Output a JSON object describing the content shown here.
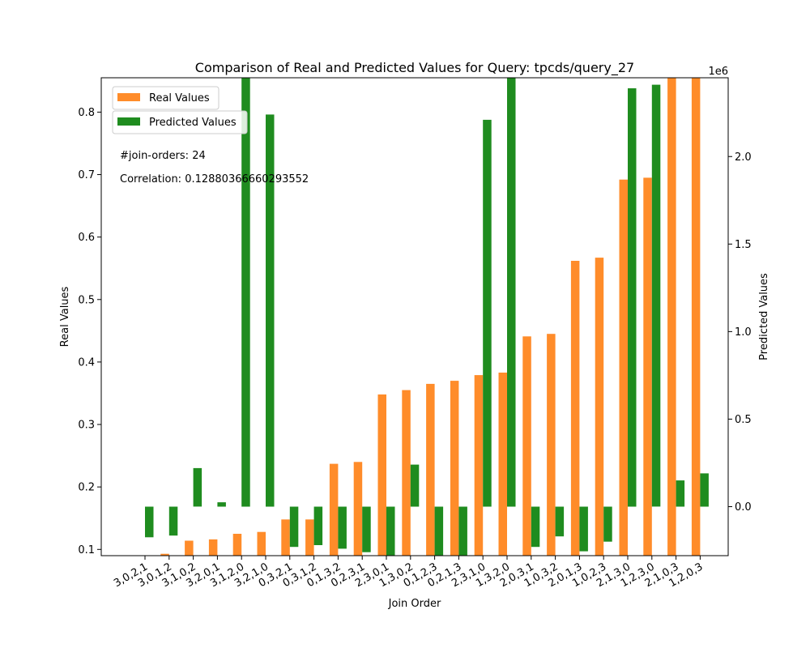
{
  "chart_data": {
    "type": "bar",
    "title": "Comparison of Real and Predicted Values for Query: tpcds/query_27",
    "xlabel": "Join Order",
    "ylabel_left": "Real Values",
    "ylabel_right": "Predicted Values",
    "right_axis_multiplier": "1e6",
    "categories": [
      "3,0,2,1",
      "3,0,1,2",
      "3,1,0,2",
      "3,2,0,1",
      "3,1,2,0",
      "3,2,1,0",
      "0,3,2,1",
      "0,3,1,2",
      "0,1,3,2",
      "0,2,3,1",
      "2,3,0,1",
      "1,3,0,2",
      "0,1,2,3",
      "0,2,1,3",
      "2,3,1,0",
      "1,3,2,0",
      "2,0,3,1",
      "1,0,3,2",
      "2,0,1,3",
      "1,0,2,3",
      "2,1,3,0",
      "1,2,3,0",
      "2,1,0,3",
      "1,2,0,3"
    ],
    "left_ylim": [
      0.09,
      0.855
    ],
    "left_yticks": [
      0.1,
      0.2,
      0.3,
      0.4,
      0.5,
      0.6,
      0.7,
      0.8
    ],
    "left_ytick_labels": [
      "0.1",
      "0.2",
      "0.3",
      "0.4",
      "0.5",
      "0.6",
      "0.7",
      "0.8"
    ],
    "right_ylim": [
      -280000,
      2450000
    ],
    "right_yticks": [
      0,
      500000,
      1000000,
      1500000,
      2000000
    ],
    "right_ytick_labels": [
      "0.0",
      "0.5",
      "1.0",
      "1.5",
      "2.0"
    ],
    "series": [
      {
        "name": "Real Values",
        "axis": "left",
        "color": "#ff8c2a",
        "values": [
          0.088,
          0.093,
          0.114,
          0.116,
          0.125,
          0.128,
          0.148,
          0.148,
          0.237,
          0.24,
          0.348,
          0.355,
          0.365,
          0.37,
          0.379,
          0.383,
          0.441,
          0.445,
          0.562,
          0.567,
          0.692,
          0.695,
          0.855,
          0.855
        ]
      },
      {
        "name": "Predicted Values",
        "axis": "right",
        "color": "#1f8c1f",
        "values": [
          -175000,
          -165000,
          220000,
          25000,
          2450000,
          2240000,
          -230000,
          -220000,
          -240000,
          -260000,
          -280000,
          240000,
          -280000,
          -280000,
          2210000,
          2450000,
          -230000,
          -170000,
          -255000,
          -200000,
          2390000,
          2410000,
          150000,
          190000
        ]
      }
    ],
    "legend_position": "top-left",
    "annotations": [
      "#join-orders: 24",
      "Correlation: 0.12880366660293552"
    ],
    "grid": false
  }
}
